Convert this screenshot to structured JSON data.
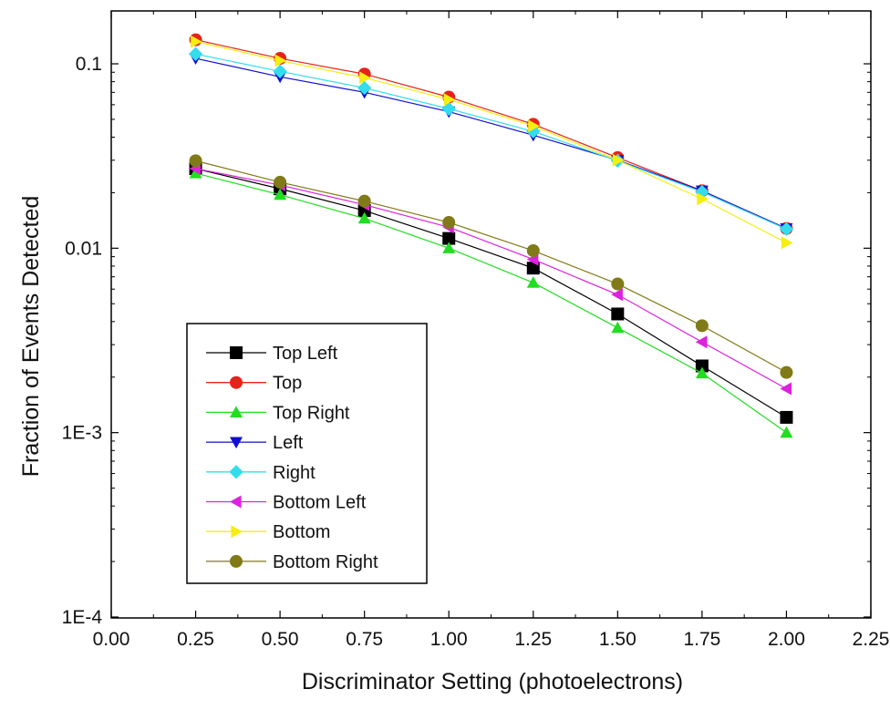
{
  "chart_data": {
    "type": "line",
    "title": "",
    "xlabel": "Discriminator Setting (photoelectrons)",
    "ylabel": "Fraction of Events Detected",
    "xlim": [
      0.0,
      2.25
    ],
    "ylim": [
      0.0001,
      0.2
    ],
    "yscale": "log",
    "xticks": [
      0.0,
      0.25,
      0.5,
      0.75,
      1.0,
      1.25,
      1.5,
      1.75,
      2.0,
      2.25
    ],
    "xtick_labels": [
      "0.00",
      "0.25",
      "0.50",
      "0.75",
      "1.00",
      "1.25",
      "1.50",
      "1.75",
      "2.00",
      "2.25"
    ],
    "yticks": [
      0.0001,
      0.001,
      0.01,
      0.1
    ],
    "ytick_labels": [
      "1E-4",
      "1E-3",
      "0.01",
      "0.1"
    ],
    "grid": false,
    "legend_position": "bottom-left",
    "x": [
      0.25,
      0.5,
      0.75,
      1.0,
      1.25,
      1.5,
      1.75,
      2.0
    ],
    "series": [
      {
        "name": "Top Left",
        "color": "#000000",
        "marker": "square",
        "values": [
          0.027,
          0.021,
          0.016,
          0.0113,
          0.0078,
          0.0044,
          0.0023,
          0.00121
        ]
      },
      {
        "name": "Top",
        "color": "#e8221b",
        "marker": "circle",
        "values": [
          0.135,
          0.107,
          0.088,
          0.066,
          0.047,
          0.031,
          0.0205,
          0.0128
        ]
      },
      {
        "name": "Top Right",
        "color": "#22dd22",
        "marker": "triangle-up",
        "values": [
          0.0255,
          0.0195,
          0.0145,
          0.01,
          0.0065,
          0.0037,
          0.0021,
          0.001
        ]
      },
      {
        "name": "Left",
        "color": "#1010cc",
        "marker": "triangle-down",
        "values": [
          0.107,
          0.085,
          0.07,
          0.055,
          0.041,
          0.03,
          0.0205,
          0.0128
        ]
      },
      {
        "name": "Right",
        "color": "#33ddee",
        "marker": "diamond",
        "values": [
          0.113,
          0.091,
          0.074,
          0.057,
          0.043,
          0.0298,
          0.0202,
          0.0127
        ]
      },
      {
        "name": "Bottom Left",
        "color": "#dd22dd",
        "marker": "triangle-left",
        "values": [
          0.027,
          0.022,
          0.0172,
          0.013,
          0.0087,
          0.0056,
          0.0031,
          0.00173
        ]
      },
      {
        "name": "Bottom",
        "color": "#f5ee10",
        "marker": "triangle-right",
        "values": [
          0.132,
          0.104,
          0.084,
          0.064,
          0.046,
          0.03,
          0.0185,
          0.0107
        ]
      },
      {
        "name": "Bottom Right",
        "color": "#807a18",
        "marker": "circle",
        "values": [
          0.0298,
          0.0228,
          0.018,
          0.0138,
          0.0097,
          0.0064,
          0.0038,
          0.00212
        ]
      }
    ]
  }
}
